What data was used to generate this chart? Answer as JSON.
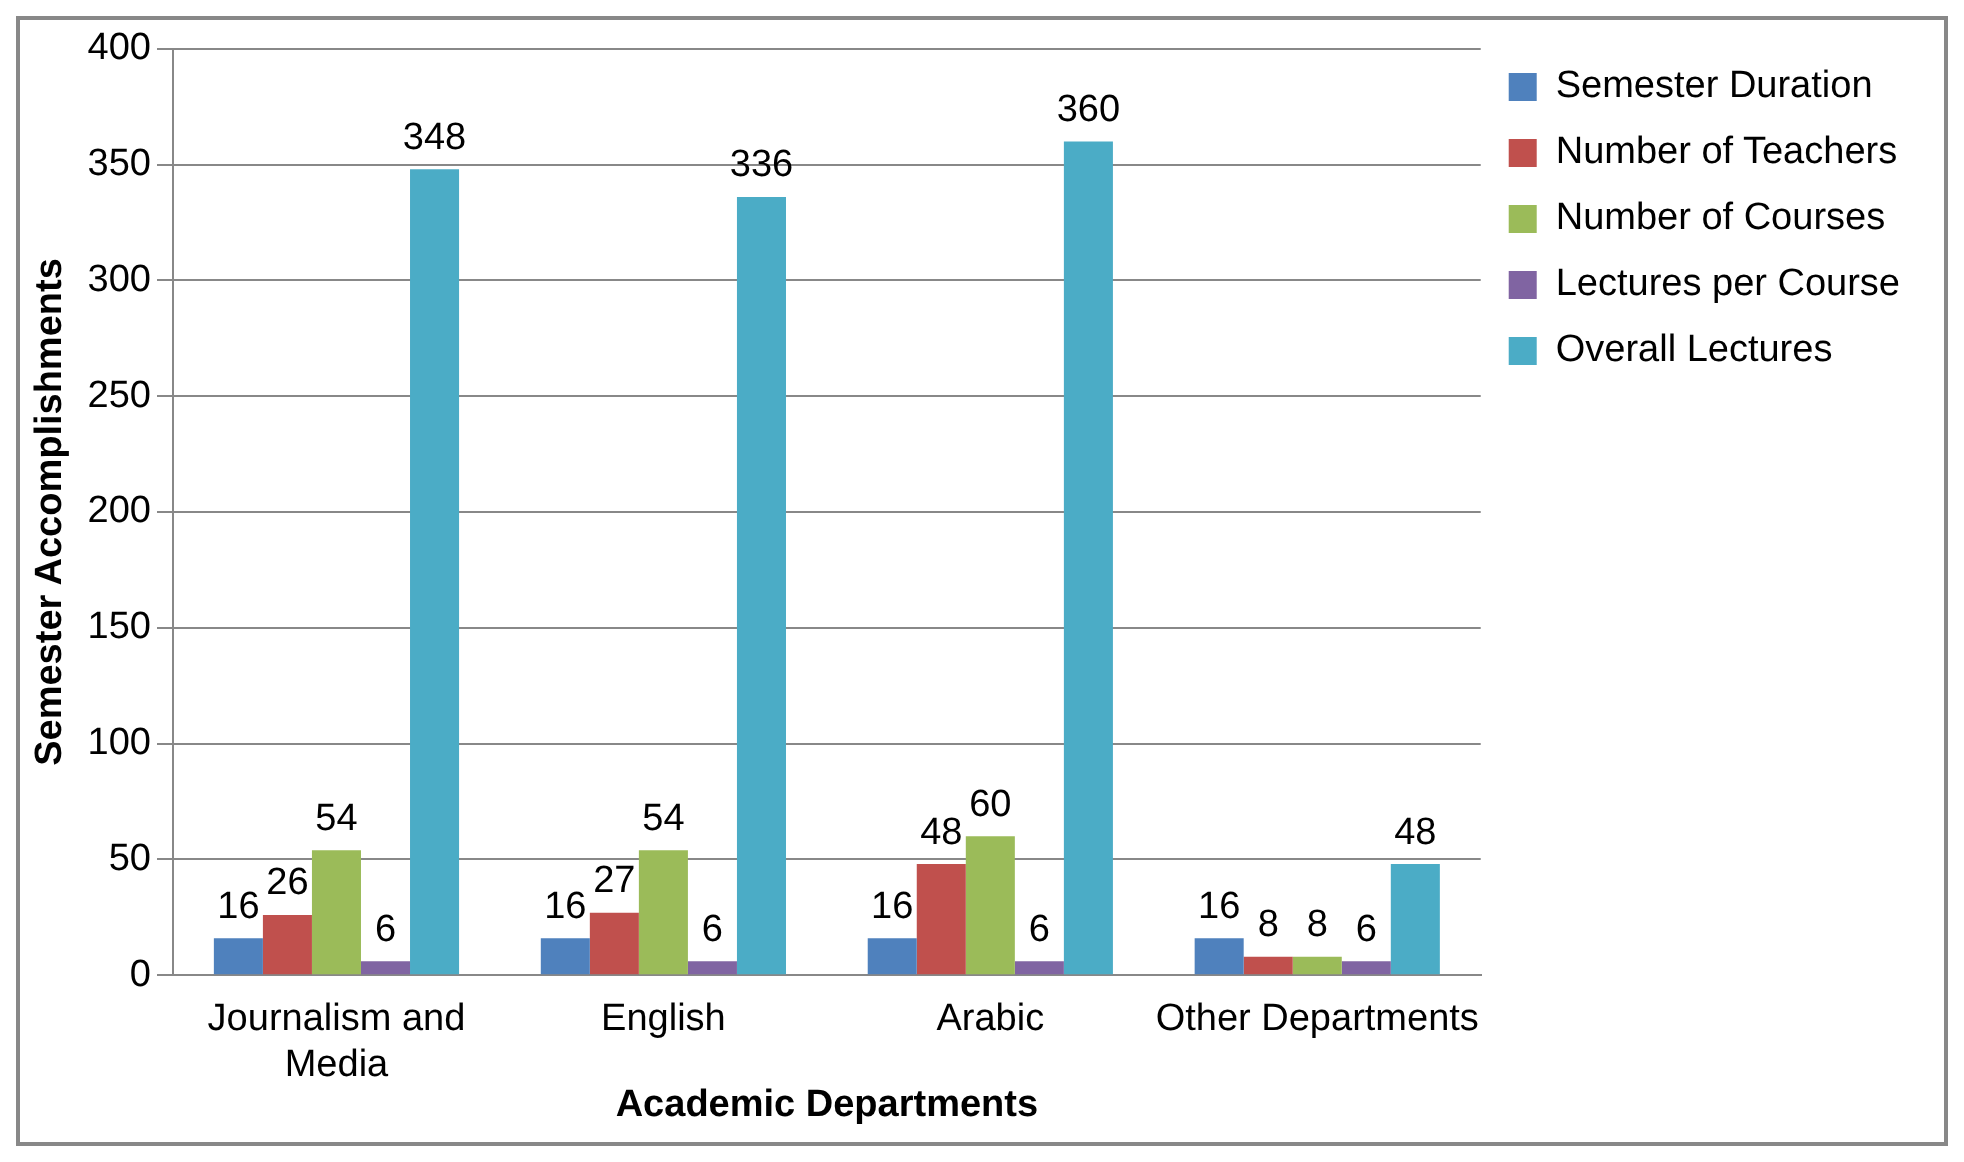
{
  "chart_data": {
    "type": "bar",
    "xlabel": "Academic Departments",
    "ylabel": "Semester Accomplishments",
    "categories": [
      "Journalism and Media",
      "English",
      "Arabic",
      "Other Departments"
    ],
    "series": [
      {
        "name": "Semester Duration",
        "color": "#4f81bd",
        "values": [
          16,
          16,
          16,
          16
        ]
      },
      {
        "name": "Number of Teachers",
        "color": "#c0504d",
        "values": [
          26,
          27,
          48,
          8
        ]
      },
      {
        "name": "Number of Courses",
        "color": "#9bbb59",
        "values": [
          54,
          54,
          60,
          8
        ]
      },
      {
        "name": "Lectures per Course",
        "color": "#8064a2",
        "values": [
          6,
          6,
          6,
          6
        ]
      },
      {
        "name": "Overall Lectures",
        "color": "#4bacc6",
        "values": [
          348,
          336,
          360,
          48
        ]
      }
    ],
    "ylim": [
      0,
      400
    ],
    "yticks": [
      0,
      50,
      100,
      150,
      200,
      250,
      300,
      350,
      400
    ],
    "grid": "y",
    "legend": "top right",
    "data_labels": true
  }
}
